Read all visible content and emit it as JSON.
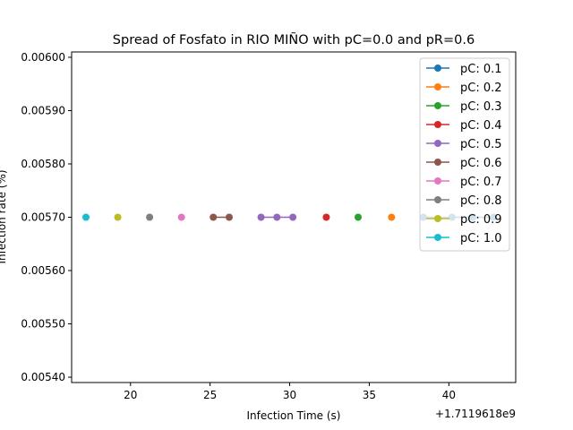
{
  "chart_data": {
    "type": "line",
    "title": "Spread of Fosfato in RIO MIÑO with pC=0.0 and pR=0.6",
    "xlabel": "Infection Time (s)",
    "ylabel": "Infection rate (%)",
    "x_offset_label": "+1.7119618e9",
    "xlim": [
      16.3,
      44.2
    ],
    "ylim": [
      0.00539,
      0.00601
    ],
    "x_ticks": [
      20,
      25,
      30,
      35,
      40
    ],
    "x_tick_labels": [
      "20",
      "25",
      "30",
      "35",
      "40"
    ],
    "y_ticks": [
      0.0054,
      0.0055,
      0.0056,
      0.0057,
      0.0058,
      0.0059,
      0.006
    ],
    "y_tick_labels": [
      "0.00540",
      "0.00550",
      "0.00560",
      "0.00570",
      "0.00580",
      "0.00590",
      "0.00600"
    ],
    "grid": false,
    "legend_position": "top-right",
    "series": [
      {
        "name": "pC: 0.1",
        "color": "#1f77b4",
        "x": [
          38.4,
          40.2,
          41.5,
          42.8
        ],
        "y": [
          0.0057,
          0.0057,
          0.0057,
          0.0057
        ]
      },
      {
        "name": "pC: 0.2",
        "color": "#ff7f0e",
        "x": [
          36.4
        ],
        "y": [
          0.0057
        ]
      },
      {
        "name": "pC: 0.3",
        "color": "#2ca02c",
        "x": [
          34.3
        ],
        "y": [
          0.0057
        ]
      },
      {
        "name": "pC: 0.4",
        "color": "#d62728",
        "x": [
          32.3
        ],
        "y": [
          0.0057
        ]
      },
      {
        "name": "pC: 0.5",
        "color": "#9467bd",
        "x": [
          28.2,
          29.2,
          30.2
        ],
        "y": [
          0.0057,
          0.0057,
          0.0057
        ]
      },
      {
        "name": "pC: 0.6",
        "color": "#8c564b",
        "x": [
          25.2,
          26.2
        ],
        "y": [
          0.0057,
          0.0057
        ]
      },
      {
        "name": "pC: 0.7",
        "color": "#e377c2",
        "x": [
          23.2
        ],
        "y": [
          0.0057
        ]
      },
      {
        "name": "pC: 0.8",
        "color": "#7f7f7f",
        "x": [
          21.2
        ],
        "y": [
          0.0057
        ]
      },
      {
        "name": "pC: 0.9",
        "color": "#bcbd22",
        "x": [
          19.2
        ],
        "y": [
          0.0057
        ]
      },
      {
        "name": "pC: 1.0",
        "color": "#17becf",
        "x": [
          17.2
        ],
        "y": [
          0.0057
        ]
      }
    ]
  }
}
